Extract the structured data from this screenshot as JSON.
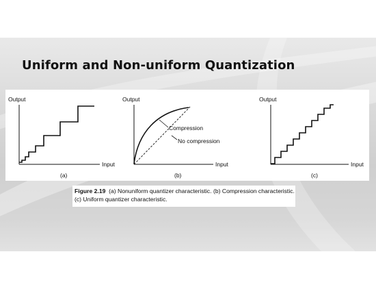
{
  "slide": {
    "title": "Uniform and Non-uniform Quantization"
  },
  "figure": {
    "panels": [
      {
        "y_axis_label": "Output",
        "x_axis_label": "Input",
        "panel_label": "(a)"
      },
      {
        "y_axis_label": "Output",
        "x_axis_label": "Input",
        "panel_label": "(b)",
        "annotations": [
          "Compression",
          "No compression"
        ]
      },
      {
        "y_axis_label": "Output",
        "x_axis_label": "Input",
        "panel_label": "(c)"
      }
    ],
    "caption_label": "Figure 2.19",
    "caption_text": "(a) Nonuniform quantizer characteristic. (b) Compression characteristic. (c) Uniform quantizer characteristic."
  },
  "colors": {
    "band": "#d4d4d4",
    "ink": "#111111"
  }
}
